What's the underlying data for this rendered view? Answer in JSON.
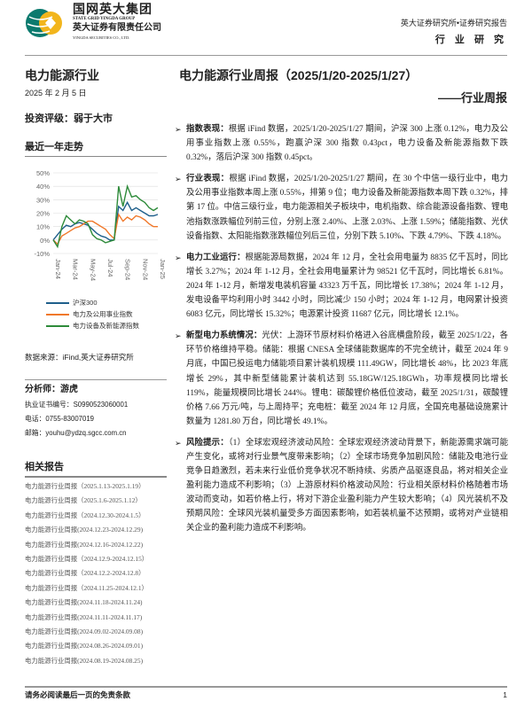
{
  "header": {
    "brand_cn": "国网英大集团",
    "brand_en": "STATE GRID YINGDA GROUP",
    "company_cn": "英大证券有限责任公司",
    "company_en": "YINGDA SECURITIES CO., LTD.",
    "institute": "英大证券研究所•证券研究报告",
    "category": "行 业 研 究"
  },
  "left": {
    "industry": "电力能源行业",
    "date": "2025 年 2 月 5 日",
    "rating": "投资评级：弱于大市",
    "trend_title": "最近一年走势",
    "source": "数据来源：iFind,英大证券研究所",
    "analyst": "分析师：游虎",
    "license": "执业证书编号：S0990523060001",
    "phone": "电话：0755-83007019",
    "email": "邮箱：youhu@ydzq.sgcc.com.cn",
    "related_title": "相关报告",
    "related_reports": [
      "电力能源行业周报（2025.1.13-2025.1.19）",
      "电力能源行业周报（2025.1.6-2025.1.12）",
      "电力能源行业周报（2024.12.30-2024.1.5）",
      "电力能源行业周报(2024.12.23-2024.12.29)",
      "电力能源行业周报(2024.12.16-2024.12.22)",
      "电力能源行业周报（2024.12.9-2024.12.15）",
      "电力能源行业周报（2024.12.2-2024.12.8）",
      "电力能源行业周报（2024.11.25-2024.12.1）",
      "电力能源行业周报(2024.11.18-2024.11.24)",
      "电力能源行业周报(2024.11.11-2024.11.17)",
      "电力能源行业周报(2024.09.02-2024.09.08)",
      "电力能源行业周报(2024.08.26-2024.09.01)",
      "电力能源行业周报(2024.08.19-2024.08.25)"
    ]
  },
  "main": {
    "title": "电力能源行业周报（2025/1/20-2025/1/27）",
    "subtitle": "——行业周报",
    "bullets": [
      {
        "head": "指数表现：",
        "text": "根据 iFind 数据，2025/1/20-2025/1/27 期间，沪深 300 上涨 0.12%，电力及公用事业指数上涨 0.55%，跑赢沪深 300 指数 0.43pct，电力设备及新能源指数下跌 0.32%，落后沪深 300 指数 0.45pct。"
      },
      {
        "head": "行业表现：",
        "text": "根据 iFind 数据，2025/1/20-2025/1/27 期间，在 30 个中信一级行业中，电力及公用事业指数本周上涨 0.55%，排第 9 位；电力设备及新能源指数本周下跌 0.32%，排第 17 位。中信三级行业，电力能源相关子板块中，电机指数、综合能源设备指数、锂电池指数涨跌幅位列前三位，分别上涨 2.40%、上涨 2.03%、上涨 1.59%；储能指数、光伏设备指数、太阳能指数涨跌幅位列后三位，分别下跌 5.10%、下跌 4.79%、下跌 4.18%。"
      },
      {
        "head": "电力工业运行：",
        "text": "根据能源局数据，2024 年 12 月，全社会用电量为 8835 亿千瓦时，同比增长 3.27%；2024 年 1-12 月，全社会用电量累计为 98521 亿千瓦时，同比增长 6.81%。2024 年 1-12 月，新增发电装机容量 43323 万千瓦，同比增长 17.38%；2024 年 1-12 月，发电设备平均利用小时 3442 小时，同比减少 150 小时；2024 年 1-12 月，电网累计投资 6083 亿元，同比增长 15.32%；电源累计投资 11687 亿元，同比增长 12.1%。"
      },
      {
        "head": "新型电力系统情况：",
        "text": "光伏：上游环节原材料价格进入谷底横盘阶段，截至 2025/1/22，各环节价格维持平稳。储能：根据 CNESA 全球储能数据库的不完全统计，截至 2024 年 9 月底，中国已投运电力储能项目累计装机规模 111.49GW，同比增长 48%，比 2023 年底增长 29%，其中新型储能累计装机达到 55.18GW/125.18GWh，功率规模同比增长 119%，能量规模同比增长 244%。锂电：碳酸锂价格低位波动，截至 2025/1/31，碳酸锂价格 7.66 万元/吨，与上周持平；充电桩：截至 2024 年 12 月底，全国充电基础设施累计数量为 1281.80 万台，同比增长 49.1%。"
      },
      {
        "head": "风险提示：",
        "text": "（1）全球宏观经济波动风险：全球宏观经济波动背景下，新能源需求端可能产生变化，或将对行业景气度带来影响；（2）全球市场竞争加剧风险：储能及电池行业竞争日趋激烈，若未来行业低价竞争状况不断持续、劣质产品驱逐良品，将对相关企业盈利能力造成不利影响；（3）上游原材料价格波动风险：行业相关原材料价格随着市场波动而变动，如若价格上行，将对下游企业盈利能力产生较大影响；（4）风光装机不及预期风险：全球风光装机量受多方面因素影响，如若装机量不达预期，或将对产业链相关企业的盈利能力造成不利影响。"
      }
    ]
  },
  "footer": {
    "disclaimer": "请务必阅读最后一页的免责条款",
    "page": "1"
  },
  "chart_data": {
    "type": "line",
    "title": "最近一年走势",
    "x": [
      "Jan-24",
      "",
      "Feb-24",
      "",
      "Mar-24",
      "",
      "Apr-24",
      "",
      "May-24",
      "",
      "Jun-24",
      "",
      "Jul-24",
      "",
      "Aug-24",
      "",
      "Sep-24",
      "",
      "Oct-24",
      "",
      "Nov-24",
      "",
      "Dec-24",
      "",
      "Jan-25"
    ],
    "xticks": [
      "Jan-24",
      "Mar-24",
      "May-24",
      "Jul-24",
      "Sep-24",
      "Nov-24",
      "Jan-25"
    ],
    "yticks": [
      "-10%",
      "0%",
      "10%",
      "20%",
      "30%",
      "40%",
      "50%"
    ],
    "ylim": [
      -10,
      50
    ],
    "grid": true,
    "legend": "bottom",
    "series": [
      {
        "name": "沪深300",
        "color": "#1f5f8b",
        "values": [
          0,
          4,
          8,
          11,
          10,
          12,
          13,
          12,
          11,
          8,
          5,
          3,
          2,
          0,
          0,
          25,
          22,
          28,
          22,
          24,
          22,
          20,
          18,
          18,
          19
        ]
      },
      {
        "name": "电力及公用事业指数",
        "color": "#f0782a",
        "values": [
          0,
          -3,
          3,
          5,
          7,
          9,
          10,
          12,
          14,
          14,
          12,
          10,
          8,
          4,
          1,
          19,
          14,
          17,
          15,
          18,
          17,
          15,
          12,
          10,
          10
        ]
      },
      {
        "name": "电力设备及新能源指数",
        "color": "#2e8b3a",
        "values": [
          0,
          -5,
          10,
          18,
          15,
          12,
          15,
          14,
          12,
          4,
          1,
          0,
          -2,
          -1,
          0,
          40,
          25,
          40,
          32,
          33,
          30,
          28,
          24,
          22,
          24
        ]
      }
    ]
  }
}
